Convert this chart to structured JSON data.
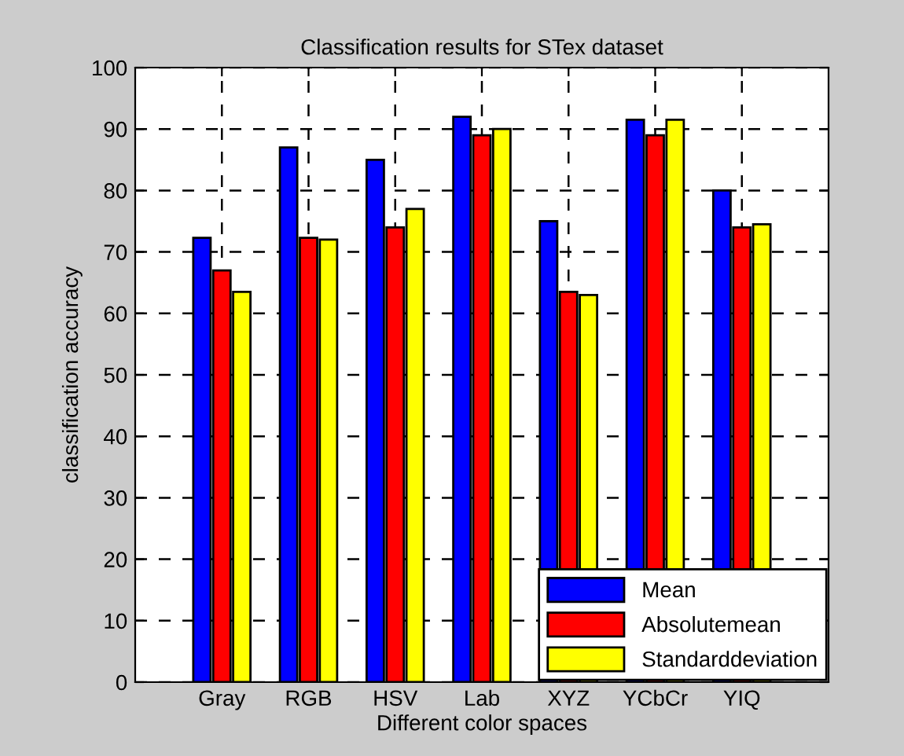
{
  "chart_data": {
    "type": "bar",
    "title": "Classification results for STex dataset",
    "xlabel": "Different color spaces",
    "ylabel": "classification accuracy",
    "categories": [
      "Gray",
      "RGB",
      "HSV",
      "Lab",
      "XYZ",
      "YCbCr",
      "YIQ"
    ],
    "series": [
      {
        "name": "Mean",
        "color": "#0000ff",
        "values": [
          72.3,
          87,
          85,
          92,
          75,
          91.5,
          80
        ]
      },
      {
        "name": "Absolutemean",
        "color": "#ff0000",
        "values": [
          67,
          72.3,
          74,
          89,
          63.5,
          89,
          74
        ]
      },
      {
        "name": "Standarddeviation",
        "color": "#ffff00",
        "values": [
          63.5,
          72,
          77,
          90,
          63,
          91.5,
          74.5
        ]
      }
    ],
    "ylim": [
      0,
      100
    ],
    "yticks": [
      0,
      10,
      20,
      30,
      40,
      50,
      60,
      70,
      80,
      90,
      100
    ],
    "grid": true,
    "legend": "bottom right"
  }
}
